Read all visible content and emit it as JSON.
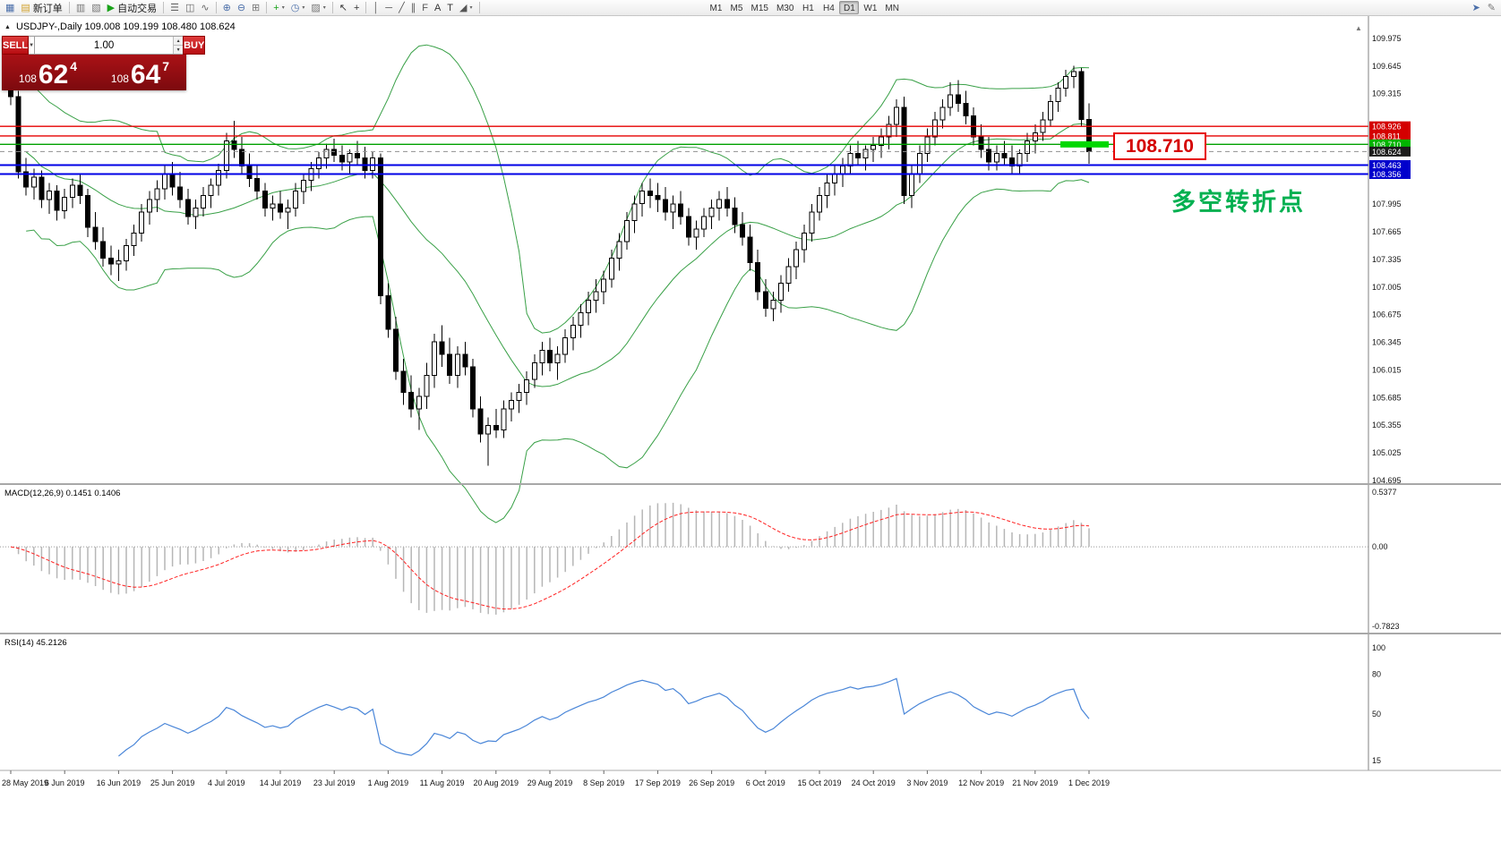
{
  "toolbar": {
    "buttons": [
      {
        "name": "chart-window-icon",
        "glyph": "▦",
        "color": "#4a6ea9"
      },
      {
        "name": "new-order-button",
        "glyph": "▤",
        "color": "#d2a22c",
        "label": "新订单"
      },
      {
        "sep": true
      },
      {
        "name": "profiles-icon",
        "glyph": "▥",
        "color": "#777777"
      },
      {
        "name": "charts-cascade-icon",
        "glyph": "▧",
        "color": "#777777"
      },
      {
        "name": "auto-trading-button",
        "glyph": "▶",
        "color": "#19a319",
        "label": "自动交易"
      },
      {
        "sep": true
      },
      {
        "name": "bar-chart-icon",
        "glyph": "☰",
        "color": "#666666"
      },
      {
        "name": "candlestick-chart-icon",
        "glyph": "◫",
        "color": "#666666"
      },
      {
        "name": "line-chart-icon",
        "glyph": "∿",
        "color": "#666666"
      },
      {
        "sep": true
      },
      {
        "name": "zoom-in-icon",
        "glyph": "⊕",
        "color": "#4a6ea9"
      },
      {
        "name": "zoom-out-icon",
        "glyph": "⊖",
        "color": "#4a6ea9"
      },
      {
        "name": "tile-windows-icon",
        "glyph": "⊞",
        "color": "#777777"
      },
      {
        "sep": true
      },
      {
        "name": "indicators-button",
        "glyph": "+",
        "color": "#19a319",
        "caret": true
      },
      {
        "name": "periods-button",
        "glyph": "◷",
        "color": "#4a6ea9",
        "caret": true
      },
      {
        "name": "templates-button",
        "glyph": "▨",
        "color": "#777777",
        "caret": true
      },
      {
        "sep": true
      },
      {
        "name": "cursor-icon",
        "glyph": "↖",
        "color": "#333333"
      },
      {
        "name": "crosshair-icon",
        "glyph": "+",
        "color": "#333333"
      },
      {
        "sep": true
      },
      {
        "name": "vertical-line-icon",
        "glyph": "│",
        "color": "#555555"
      },
      {
        "name": "horizontal-line-icon",
        "glyph": "─",
        "color": "#555555"
      },
      {
        "name": "trendline-icon",
        "glyph": "╱",
        "color": "#555555"
      },
      {
        "name": "channel-icon",
        "glyph": "∥",
        "color": "#555555"
      },
      {
        "name": "fibonacci-icon",
        "glyph": "F",
        "color": "#555555"
      },
      {
        "name": "text-icon",
        "glyph": "A",
        "color": "#333333"
      },
      {
        "name": "label-icon",
        "glyph": "T",
        "color": "#333333"
      },
      {
        "name": "arrows-icon",
        "glyph": "◢",
        "color": "#555555",
        "caret": true
      },
      {
        "sep": true
      }
    ],
    "timeframes": [
      "M1",
      "M5",
      "M15",
      "M30",
      "H1",
      "H4",
      "D1",
      "W1",
      "MN"
    ],
    "active_timeframe": "D1",
    "right_buttons": [
      {
        "name": "chart-forward-icon",
        "glyph": "➤",
        "color": "#4a6ea9"
      },
      {
        "name": "edit-cursor-icon",
        "glyph": "✎",
        "color": "#777777"
      }
    ]
  },
  "symbol_header": "USDJPY-,Daily  109.008 109.199 108.480 108.624",
  "trade_panel": {
    "sell_label": "SELL",
    "buy_label": "BUY",
    "lot_size": "1.00",
    "sell_price": {
      "small": "108",
      "big": "62",
      "sup": "4"
    },
    "buy_price": {
      "small": "108",
      "big": "64",
      "sup": "7"
    }
  },
  "price_callout": {
    "text": "108.710",
    "color": "#d40000",
    "border_color": "#e60000"
  },
  "annotation": {
    "text": "多空转折点",
    "color": "#00b050"
  },
  "chart_data": {
    "type": "candlestick",
    "symbol": "USDJPY-",
    "timeframe": "Daily",
    "current_bar": {
      "open": 109.008,
      "high": 109.199,
      "low": 108.48,
      "close": 108.624
    },
    "price_axis": {
      "min": 104.695,
      "max": 109.975,
      "ticks": [
        109.975,
        109.645,
        109.315,
        107.995,
        107.665,
        107.335,
        107.005,
        106.675,
        106.345,
        106.015,
        105.685,
        105.355,
        105.025,
        104.695
      ]
    },
    "hlines": [
      {
        "price": 108.926,
        "color": "#e60000",
        "width": 1.4,
        "label_bg": "#d40000"
      },
      {
        "price": 108.811,
        "color": "#e60000",
        "width": 1.4,
        "label_bg": "#d40000"
      },
      {
        "price": 108.71,
        "color": "#00a000",
        "width": 1.4,
        "label_bg": "#00b400",
        "highlight_bar": true,
        "bar_color": "#00d800"
      },
      {
        "price": 108.624,
        "color": "#909090",
        "width": 1,
        "dashed": true,
        "label_bg": "#1c1c1c"
      },
      {
        "price": 108.463,
        "color": "#0000e6",
        "width": 2,
        "label_bg": "#0000cc"
      },
      {
        "price": 108.356,
        "color": "#0000e6",
        "width": 2,
        "label_bg": "#0000cc"
      }
    ],
    "dates": [
      {
        "i": 0,
        "label": "28 May 2019"
      },
      {
        "i": 7,
        "label": "6 Jun 2019"
      },
      {
        "i": 14,
        "label": "16 Jun 2019"
      },
      {
        "i": 21,
        "label": "25 Jun 2019"
      },
      {
        "i": 28,
        "label": "4 Jul 2019"
      },
      {
        "i": 35,
        "label": "14 Jul 2019"
      },
      {
        "i": 42,
        "label": "23 Jul 2019"
      },
      {
        "i": 49,
        "label": "1 Aug 2019"
      },
      {
        "i": 56,
        "label": "11 Aug 2019"
      },
      {
        "i": 63,
        "label": "20 Aug 2019"
      },
      {
        "i": 70,
        "label": "29 Aug 2019"
      },
      {
        "i": 77,
        "label": "8 Sep 2019"
      },
      {
        "i": 84,
        "label": "17 Sep 2019"
      },
      {
        "i": 91,
        "label": "26 Sep 2019"
      },
      {
        "i": 98,
        "label": "6 Oct 2019"
      },
      {
        "i": 105,
        "label": "15 Oct 2019"
      },
      {
        "i": 112,
        "label": "24 Oct 2019"
      },
      {
        "i": 119,
        "label": "3 Nov 2019"
      },
      {
        "i": 126,
        "label": "12 Nov 2019"
      },
      {
        "i": 133,
        "label": "21 Nov 2019"
      },
      {
        "i": 140,
        "label": "1 Dec 2019"
      }
    ],
    "candles": [
      [
        109.42,
        109.52,
        109.18,
        109.28
      ],
      [
        109.28,
        109.35,
        108.3,
        108.38
      ],
      [
        108.38,
        108.55,
        108.1,
        108.2
      ],
      [
        108.2,
        108.42,
        108.05,
        108.32
      ],
      [
        108.32,
        108.4,
        107.95,
        108.05
      ],
      [
        108.05,
        108.25,
        107.88,
        108.15
      ],
      [
        108.15,
        108.22,
        107.8,
        107.92
      ],
      [
        107.92,
        108.18,
        107.82,
        108.08
      ],
      [
        108.08,
        108.3,
        107.95,
        108.22
      ],
      [
        108.22,
        108.35,
        108.0,
        108.1
      ],
      [
        108.1,
        108.18,
        107.6,
        107.72
      ],
      [
        107.72,
        107.9,
        107.45,
        107.55
      ],
      [
        107.55,
        107.72,
        107.25,
        107.35
      ],
      [
        107.35,
        107.5,
        107.15,
        107.28
      ],
      [
        107.28,
        107.45,
        107.08,
        107.32
      ],
      [
        107.32,
        107.58,
        107.2,
        107.5
      ],
      [
        107.5,
        107.75,
        107.38,
        107.65
      ],
      [
        107.65,
        108.0,
        107.55,
        107.9
      ],
      [
        107.9,
        108.15,
        107.75,
        108.05
      ],
      [
        108.05,
        108.28,
        107.9,
        108.18
      ],
      [
        108.18,
        108.45,
        108.05,
        108.35
      ],
      [
        108.35,
        108.5,
        108.1,
        108.2
      ],
      [
        108.2,
        108.38,
        107.95,
        108.05
      ],
      [
        108.05,
        108.18,
        107.75,
        107.85
      ],
      [
        107.85,
        108.05,
        107.7,
        107.95
      ],
      [
        107.95,
        108.2,
        107.85,
        108.1
      ],
      [
        108.1,
        108.3,
        107.95,
        108.22
      ],
      [
        108.22,
        108.48,
        108.1,
        108.4
      ],
      [
        108.4,
        108.85,
        108.3,
        108.75
      ],
      [
        108.75,
        108.99,
        108.55,
        108.65
      ],
      [
        108.65,
        108.8,
        108.35,
        108.45
      ],
      [
        108.45,
        108.6,
        108.2,
        108.3
      ],
      [
        108.3,
        108.45,
        108.05,
        108.15
      ],
      [
        108.15,
        108.25,
        107.85,
        107.95
      ],
      [
        107.95,
        108.1,
        107.8,
        108.0
      ],
      [
        108.0,
        108.15,
        107.82,
        107.9
      ],
      [
        107.9,
        108.05,
        107.7,
        107.95
      ],
      [
        107.95,
        108.25,
        107.85,
        108.15
      ],
      [
        108.15,
        108.35,
        108.0,
        108.28
      ],
      [
        108.28,
        108.5,
        108.15,
        108.42
      ],
      [
        108.42,
        108.62,
        108.3,
        108.55
      ],
      [
        108.55,
        108.72,
        108.42,
        108.65
      ],
      [
        108.65,
        108.78,
        108.5,
        108.58
      ],
      [
        108.58,
        108.7,
        108.4,
        108.5
      ],
      [
        108.5,
        108.65,
        108.35,
        108.6
      ],
      [
        108.6,
        108.75,
        108.45,
        108.55
      ],
      [
        108.55,
        108.68,
        108.3,
        108.4
      ],
      [
        108.4,
        108.62,
        108.3,
        108.55
      ],
      [
        108.55,
        108.6,
        106.8,
        106.9
      ],
      [
        106.9,
        107.05,
        106.4,
        106.5
      ],
      [
        106.5,
        106.65,
        105.9,
        106.0
      ],
      [
        106.0,
        106.15,
        105.6,
        105.75
      ],
      [
        105.75,
        105.95,
        105.45,
        105.55
      ],
      [
        105.55,
        105.8,
        105.3,
        105.7
      ],
      [
        105.7,
        106.1,
        105.55,
        105.95
      ],
      [
        105.95,
        106.45,
        105.8,
        106.35
      ],
      [
        106.35,
        106.55,
        106.05,
        106.2
      ],
      [
        106.2,
        106.4,
        105.85,
        105.95
      ],
      [
        105.95,
        106.3,
        105.8,
        106.2
      ],
      [
        106.2,
        106.35,
        105.95,
        106.05
      ],
      [
        106.05,
        106.15,
        105.45,
        105.55
      ],
      [
        105.55,
        105.7,
        105.15,
        105.25
      ],
      [
        105.25,
        105.45,
        104.87,
        105.35
      ],
      [
        105.35,
        105.55,
        105.2,
        105.3
      ],
      [
        105.3,
        105.65,
        105.2,
        105.55
      ],
      [
        105.55,
        105.75,
        105.4,
        105.65
      ],
      [
        105.65,
        105.85,
        105.5,
        105.75
      ],
      [
        105.75,
        106.0,
        105.6,
        105.9
      ],
      [
        105.9,
        106.2,
        105.8,
        106.1
      ],
      [
        106.1,
        106.35,
        105.95,
        106.25
      ],
      [
        106.25,
        106.4,
        106.0,
        106.1
      ],
      [
        106.1,
        106.3,
        105.9,
        106.2
      ],
      [
        106.2,
        106.5,
        106.1,
        106.4
      ],
      [
        106.4,
        106.65,
        106.25,
        106.55
      ],
      [
        106.55,
        106.8,
        106.4,
        106.7
      ],
      [
        106.7,
        106.95,
        106.55,
        106.85
      ],
      [
        106.85,
        107.1,
        106.7,
        106.95
      ],
      [
        106.95,
        107.2,
        106.8,
        107.1
      ],
      [
        107.1,
        107.45,
        107.0,
        107.35
      ],
      [
        107.35,
        107.65,
        107.2,
        107.55
      ],
      [
        107.55,
        107.9,
        107.45,
        107.8
      ],
      [
        107.8,
        108.1,
        107.65,
        108.0
      ],
      [
        108.0,
        108.25,
        107.85,
        108.15
      ],
      [
        108.15,
        108.3,
        107.95,
        108.1
      ],
      [
        108.1,
        108.25,
        107.9,
        108.05
      ],
      [
        108.05,
        108.2,
        107.8,
        107.9
      ],
      [
        107.9,
        108.1,
        107.7,
        108.0
      ],
      [
        108.0,
        108.15,
        107.75,
        107.85
      ],
      [
        107.85,
        107.95,
        107.5,
        107.6
      ],
      [
        107.6,
        107.8,
        107.45,
        107.7
      ],
      [
        107.7,
        107.95,
        107.6,
        107.85
      ],
      [
        107.85,
        108.05,
        107.7,
        107.95
      ],
      [
        107.95,
        108.15,
        107.8,
        108.05
      ],
      [
        108.05,
        108.2,
        107.85,
        107.95
      ],
      [
        107.95,
        108.08,
        107.65,
        107.75
      ],
      [
        107.75,
        107.9,
        107.5,
        107.6
      ],
      [
        107.6,
        107.75,
        107.2,
        107.3
      ],
      [
        107.3,
        107.45,
        106.85,
        106.95
      ],
      [
        106.95,
        107.1,
        106.65,
        106.75
      ],
      [
        106.75,
        106.95,
        106.6,
        106.85
      ],
      [
        106.85,
        107.15,
        106.7,
        107.05
      ],
      [
        107.05,
        107.35,
        106.95,
        107.25
      ],
      [
        107.25,
        107.55,
        107.1,
        107.45
      ],
      [
        107.45,
        107.75,
        107.3,
        107.65
      ],
      [
        107.65,
        108.0,
        107.55,
        107.9
      ],
      [
        107.9,
        108.2,
        107.8,
        108.1
      ],
      [
        108.1,
        108.35,
        107.95,
        108.25
      ],
      [
        108.25,
        108.45,
        108.1,
        108.35
      ],
      [
        108.35,
        108.55,
        108.2,
        108.45
      ],
      [
        108.45,
        108.7,
        108.35,
        108.6
      ],
      [
        108.6,
        108.75,
        108.45,
        108.55
      ],
      [
        108.55,
        108.7,
        108.4,
        108.65
      ],
      [
        108.65,
        108.8,
        108.5,
        108.7
      ],
      [
        108.7,
        108.9,
        108.55,
        108.8
      ],
      [
        108.8,
        109.05,
        108.65,
        108.95
      ],
      [
        108.95,
        109.25,
        108.8,
        109.15
      ],
      [
        109.15,
        109.28,
        108.0,
        108.1
      ],
      [
        108.1,
        108.45,
        107.95,
        108.35
      ],
      [
        108.35,
        108.7,
        108.25,
        108.6
      ],
      [
        108.6,
        108.9,
        108.5,
        108.8
      ],
      [
        108.8,
        109.1,
        108.7,
        109.0
      ],
      [
        109.0,
        109.25,
        108.9,
        109.15
      ],
      [
        109.15,
        109.45,
        109.05,
        109.3
      ],
      [
        109.3,
        109.48,
        109.1,
        109.2
      ],
      [
        109.2,
        109.35,
        108.95,
        109.05
      ],
      [
        109.05,
        109.15,
        108.7,
        108.8
      ],
      [
        108.8,
        108.95,
        108.55,
        108.65
      ],
      [
        108.65,
        108.8,
        108.4,
        108.5
      ],
      [
        108.5,
        108.7,
        108.4,
        108.6
      ],
      [
        108.6,
        108.75,
        108.45,
        108.55
      ],
      [
        108.55,
        108.7,
        108.35,
        108.45
      ],
      [
        108.45,
        108.65,
        108.35,
        108.6
      ],
      [
        108.6,
        108.85,
        108.5,
        108.75
      ],
      [
        108.75,
        108.95,
        108.6,
        108.85
      ],
      [
        108.85,
        109.1,
        108.75,
        109.0
      ],
      [
        109.0,
        109.3,
        108.92,
        109.22
      ],
      [
        109.22,
        109.45,
        109.1,
        109.38
      ],
      [
        109.38,
        109.6,
        109.28,
        109.52
      ],
      [
        109.52,
        109.65,
        109.38,
        109.58
      ],
      [
        109.58,
        109.62,
        108.92,
        109.01
      ],
      [
        109.008,
        109.199,
        108.48,
        108.624
      ]
    ],
    "indicators": {
      "bollinger": {
        "period": 20,
        "deviations": 2,
        "color": "#39a047"
      },
      "macd": {
        "label": "MACD(12,26,9) 0.1451 0.1406",
        "value": 0.1451,
        "signal": 0.1406,
        "scale_max": 0.5377,
        "scale_min": -0.7823,
        "scale_labels": {
          "top": "0.5377",
          "zero": "0.00",
          "bottom": "-0.7823"
        },
        "hist_color": "#b6b6b6",
        "signal_color": "#ff2020"
      },
      "rsi": {
        "label": "RSI(14) 45.2126",
        "value": 45.2126,
        "color": "#4a86d8",
        "scale": [
          {
            "v": 100,
            "label": "100"
          },
          {
            "v": 80,
            "label": "80"
          },
          {
            "v": 50,
            "label": "50"
          },
          {
            "v": 15,
            "label": "15"
          }
        ]
      }
    }
  }
}
